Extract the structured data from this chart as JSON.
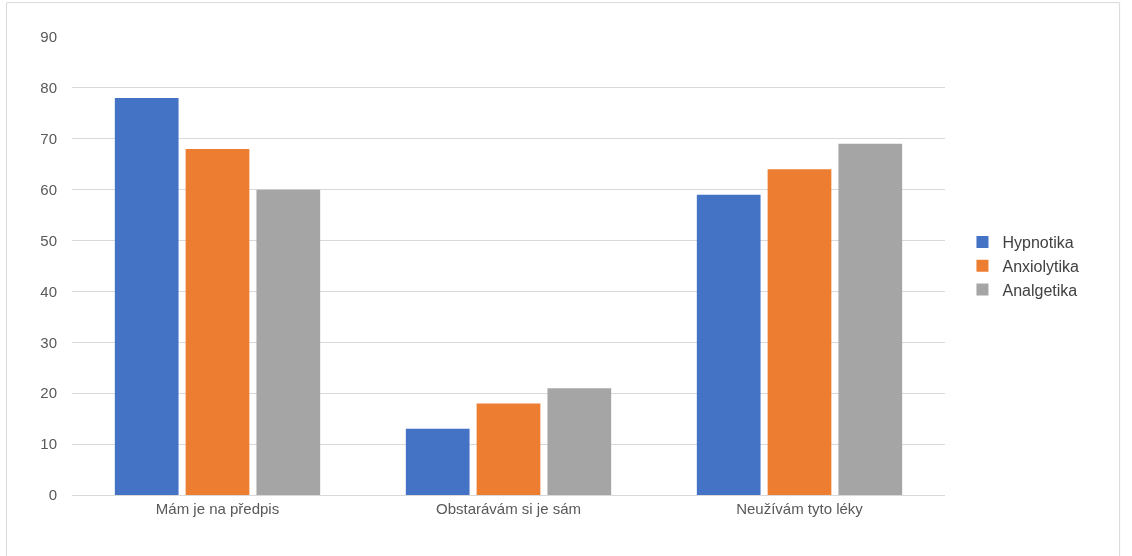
{
  "chart_data": {
    "type": "bar",
    "categories": [
      "Mám je na předpis",
      "Obstarávám si je sám",
      "Neužívám tyto léky"
    ],
    "series": [
      {
        "name": "Hypnotika",
        "color": "#4472c4",
        "values": [
          78,
          13,
          59
        ]
      },
      {
        "name": "Anxiolytika",
        "color": "#ed7d31",
        "values": [
          68,
          18,
          64
        ]
      },
      {
        "name": "Analgetika",
        "color": "#a5a5a5",
        "values": [
          60,
          21,
          69
        ]
      }
    ],
    "ylim": [
      0,
      90
    ],
    "yticks": [
      0,
      10,
      20,
      30,
      40,
      50,
      60,
      70,
      80,
      90
    ],
    "grid": "y",
    "legend": "right"
  }
}
